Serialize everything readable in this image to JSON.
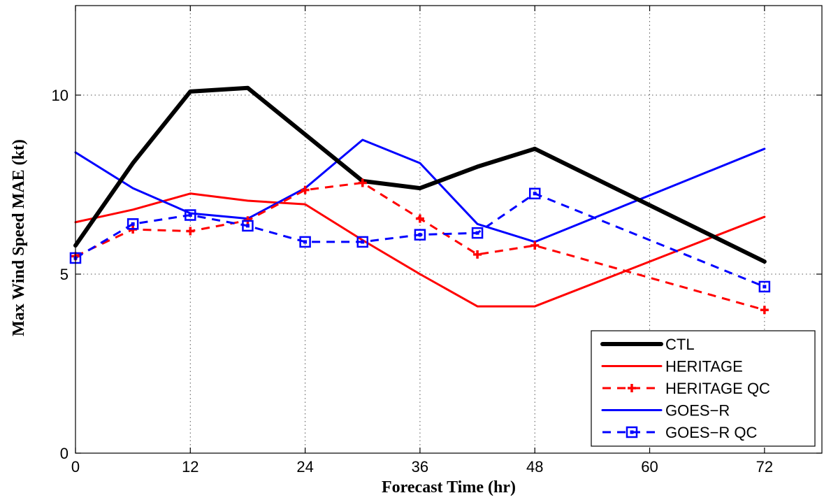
{
  "chart_data": {
    "type": "line",
    "xlabel": "Forecast Time (hr)",
    "ylabel": "Max Wind Speed MAE (kt)",
    "xlim": [
      0,
      78
    ],
    "ylim": [
      0,
      12.5
    ],
    "xticks": [
      0,
      12,
      24,
      36,
      48,
      60,
      72
    ],
    "yticks": [
      0,
      5,
      10
    ],
    "grid": true,
    "legend_position": "bottom-right",
    "series": [
      {
        "name": "CTL",
        "color": "#000000",
        "style": "solid-thick",
        "marker": "none",
        "x": [
          0,
          6,
          12,
          18,
          24,
          30,
          36,
          42,
          48,
          72
        ],
        "y": [
          5.8,
          8.1,
          10.1,
          10.2,
          8.9,
          7.6,
          7.4,
          8.0,
          8.5,
          5.35
        ]
      },
      {
        "name": "HERITAGE",
        "color": "#ff0000",
        "style": "solid",
        "marker": "none",
        "x": [
          0,
          6,
          12,
          18,
          24,
          30,
          36,
          42,
          48,
          72
        ],
        "y": [
          6.45,
          6.8,
          7.25,
          7.05,
          6.95,
          5.95,
          5.0,
          4.1,
          4.1,
          6.6
        ]
      },
      {
        "name": "HERITAGE QC",
        "color": "#ff0000",
        "style": "dashed",
        "marker": "plus",
        "x": [
          0,
          6,
          12,
          18,
          24,
          30,
          36,
          42,
          48,
          72
        ],
        "y": [
          5.5,
          6.25,
          6.2,
          6.5,
          7.35,
          7.55,
          6.55,
          5.55,
          5.8,
          4.0
        ]
      },
      {
        "name": "GOES−R",
        "color": "#0000ff",
        "style": "solid",
        "marker": "none",
        "x": [
          0,
          6,
          12,
          18,
          24,
          30,
          36,
          42,
          48,
          72
        ],
        "y": [
          8.4,
          7.4,
          6.7,
          6.55,
          7.4,
          8.75,
          8.1,
          6.4,
          5.9,
          8.5
        ]
      },
      {
        "name": "GOES−R QC",
        "color": "#0000ff",
        "style": "dashed",
        "marker": "square",
        "x": [
          0,
          6,
          12,
          18,
          24,
          30,
          36,
          42,
          48,
          72
        ],
        "y": [
          5.45,
          6.4,
          6.65,
          6.35,
          5.9,
          5.9,
          6.1,
          6.15,
          7.25,
          4.65
        ]
      }
    ]
  }
}
